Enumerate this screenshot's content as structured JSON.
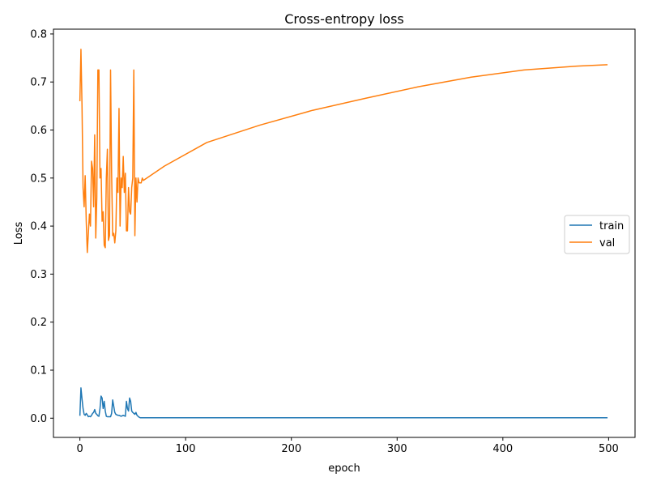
{
  "chart_data": {
    "type": "line",
    "title": "Cross-entropy loss",
    "xlabel": "epoch",
    "ylabel": "Loss",
    "xlim": [
      -25,
      525
    ],
    "ylim": [
      -0.04,
      0.81
    ],
    "xticks": [
      0,
      100,
      200,
      300,
      400,
      500
    ],
    "yticks": [
      0.0,
      0.1,
      0.2,
      0.3,
      0.4,
      0.5,
      0.6,
      0.7,
      0.8
    ],
    "xtick_labels": [
      "0",
      "100",
      "200",
      "300",
      "400",
      "500"
    ],
    "ytick_labels": [
      "0.0",
      "0.1",
      "0.2",
      "0.3",
      "0.4",
      "0.5",
      "0.6",
      "0.7",
      "0.8"
    ],
    "grid": false,
    "legend_position": "center-right",
    "series": [
      {
        "name": "train",
        "color": "#1f77b4",
        "x": [
          0,
          1,
          2,
          3,
          4,
          5,
          6,
          7,
          8,
          9,
          10,
          11,
          12,
          13,
          14,
          15,
          16,
          17,
          18,
          19,
          20,
          21,
          22,
          23,
          24,
          25,
          26,
          27,
          28,
          29,
          30,
          31,
          32,
          33,
          34,
          35,
          36,
          37,
          38,
          39,
          40,
          41,
          42,
          43,
          44,
          45,
          46,
          47,
          48,
          49,
          50,
          51,
          52,
          53,
          54,
          55,
          56,
          57,
          58,
          60,
          100,
          200,
          300,
          400,
          499
        ],
        "y": [
          0.005,
          0.063,
          0.04,
          0.02,
          0.008,
          0.006,
          0.01,
          0.007,
          0.003,
          0.004,
          0.003,
          0.006,
          0.01,
          0.012,
          0.018,
          0.01,
          0.008,
          0.005,
          0.004,
          0.02,
          0.046,
          0.042,
          0.02,
          0.035,
          0.015,
          0.004,
          0.003,
          0.003,
          0.003,
          0.003,
          0.01,
          0.038,
          0.025,
          0.012,
          0.008,
          0.007,
          0.006,
          0.006,
          0.005,
          0.004,
          0.005,
          0.006,
          0.005,
          0.004,
          0.035,
          0.02,
          0.015,
          0.042,
          0.035,
          0.015,
          0.012,
          0.01,
          0.008,
          0.012,
          0.006,
          0.004,
          0.002,
          0.001,
          0.001,
          0.001,
          0.001,
          0.001,
          0.001,
          0.001,
          0.001
        ]
      },
      {
        "name": "val",
        "color": "#ff7f0e",
        "x": [
          0,
          1,
          2,
          3,
          4,
          5,
          6,
          7,
          8,
          9,
          10,
          11,
          12,
          13,
          14,
          15,
          16,
          17,
          18,
          19,
          20,
          21,
          22,
          23,
          24,
          25,
          26,
          27,
          28,
          29,
          30,
          31,
          32,
          33,
          34,
          35,
          36,
          37,
          38,
          39,
          40,
          41,
          42,
          43,
          44,
          45,
          46,
          47,
          48,
          49,
          50,
          51,
          52,
          53,
          54,
          55,
          56,
          57,
          58,
          59,
          60,
          80,
          120,
          170,
          220,
          270,
          320,
          370,
          420,
          470,
          499
        ],
        "y": [
          0.66,
          0.768,
          0.65,
          0.48,
          0.44,
          0.505,
          0.41,
          0.345,
          0.385,
          0.425,
          0.4,
          0.535,
          0.52,
          0.44,
          0.59,
          0.375,
          0.46,
          0.725,
          0.725,
          0.5,
          0.52,
          0.41,
          0.43,
          0.36,
          0.355,
          0.5,
          0.56,
          0.37,
          0.38,
          0.725,
          0.51,
          0.38,
          0.385,
          0.365,
          0.39,
          0.5,
          0.47,
          0.645,
          0.4,
          0.5,
          0.48,
          0.545,
          0.47,
          0.51,
          0.39,
          0.39,
          0.48,
          0.43,
          0.425,
          0.48,
          0.5,
          0.725,
          0.38,
          0.5,
          0.45,
          0.5,
          0.49,
          0.49,
          0.49,
          0.5,
          0.495,
          0.525,
          0.574,
          0.61,
          0.641,
          0.666,
          0.69,
          0.71,
          0.725,
          0.733,
          0.736
        ]
      }
    ]
  }
}
